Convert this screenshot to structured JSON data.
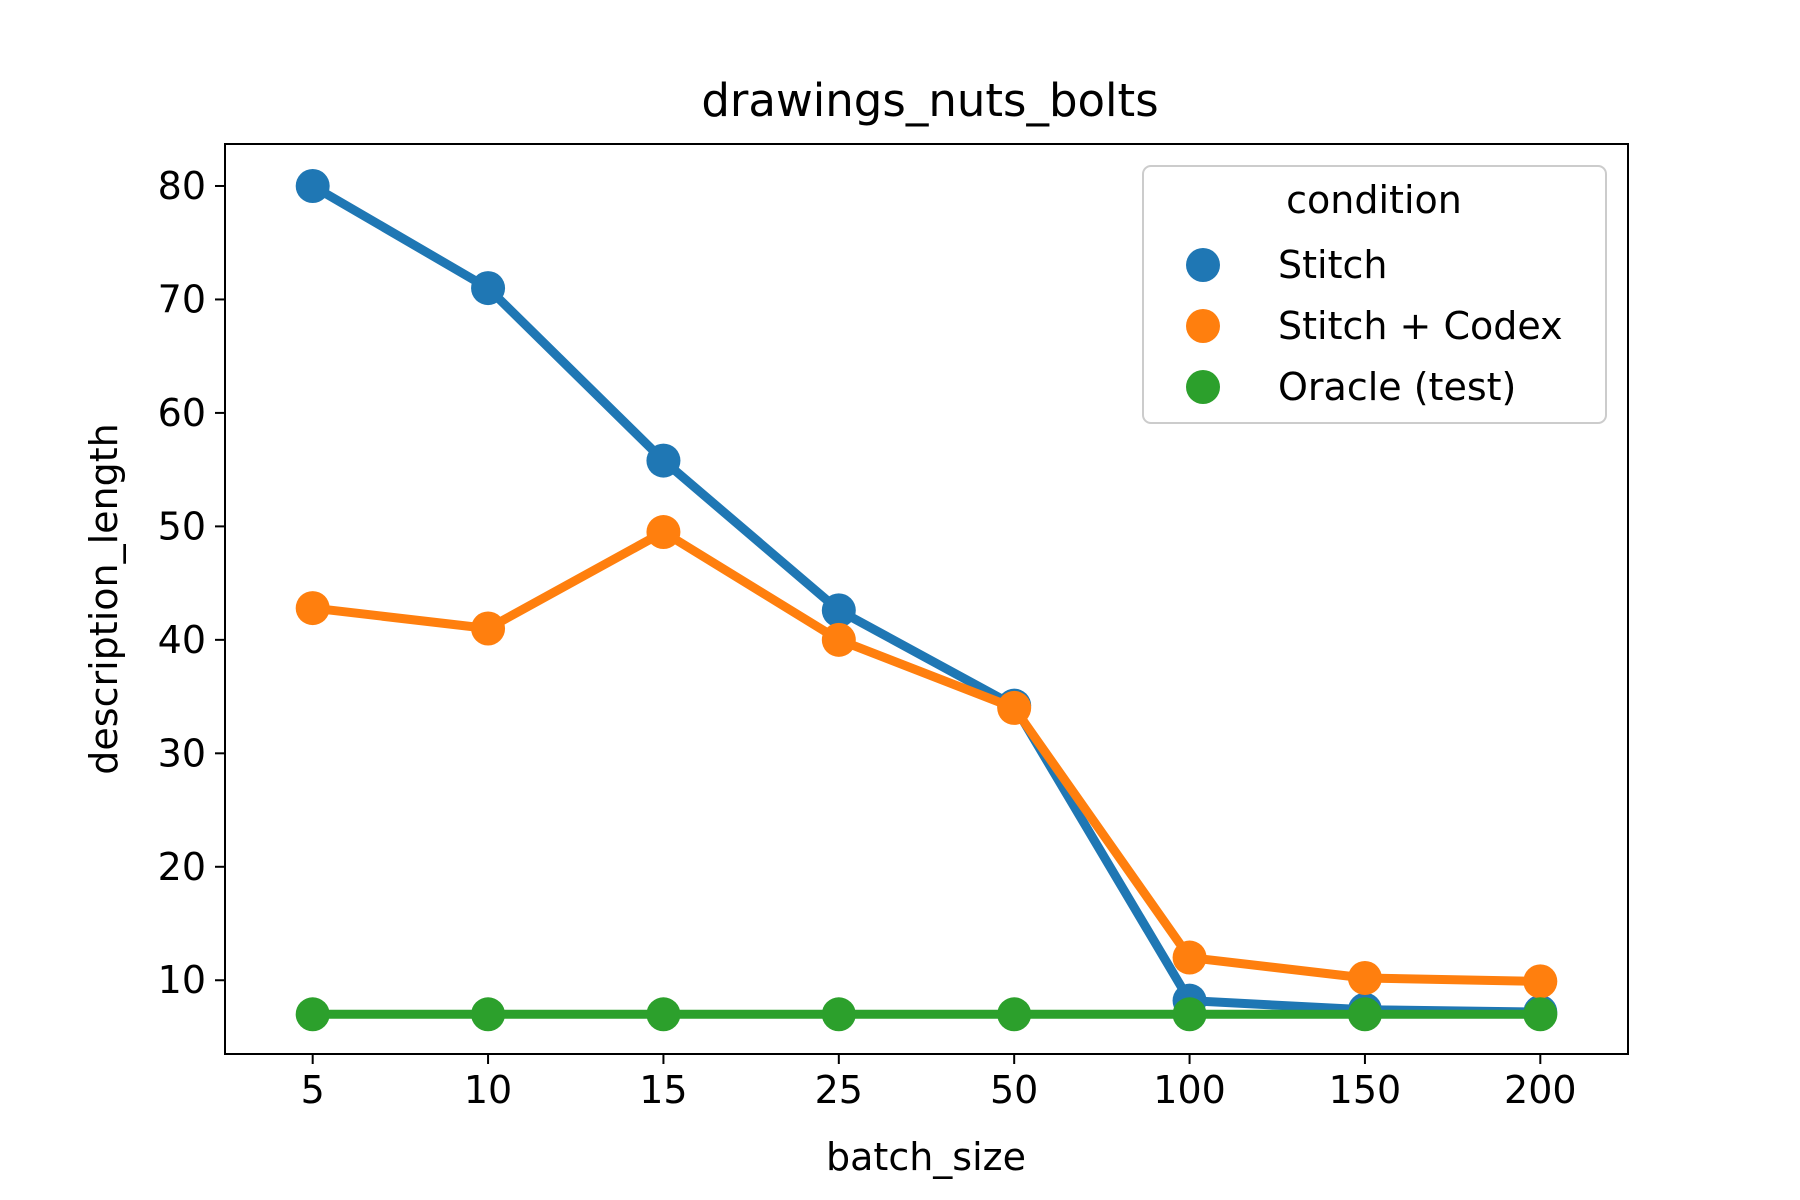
{
  "chart_data": {
    "type": "line",
    "title": "drawings_nuts_bolts",
    "xlabel": "batch_size",
    "ylabel": "description_length",
    "categories": [
      "5",
      "10",
      "15",
      "25",
      "50",
      "100",
      "150",
      "200"
    ],
    "ylim": [
      3.5,
      83.7
    ],
    "yticks": [
      10,
      20,
      30,
      40,
      50,
      60,
      70,
      80
    ],
    "grid": false,
    "legend": {
      "title": "condition",
      "placement": "upper right"
    },
    "series": [
      {
        "name": "Stitch",
        "color": "#1f77b4",
        "values": [
          80.0,
          71.0,
          55.8,
          42.6,
          34.2,
          8.2,
          7.4,
          7.2
        ]
      },
      {
        "name": "Stitch + Codex",
        "color": "#ff7f0e",
        "values": [
          42.8,
          41.0,
          49.5,
          40.0,
          34.0,
          12.0,
          10.2,
          9.9
        ]
      },
      {
        "name": "Oracle (test)",
        "color": "#2ca02c",
        "values": [
          7.0,
          7.0,
          7.0,
          7.0,
          7.0,
          7.0,
          7.0,
          7.0
        ]
      }
    ]
  }
}
